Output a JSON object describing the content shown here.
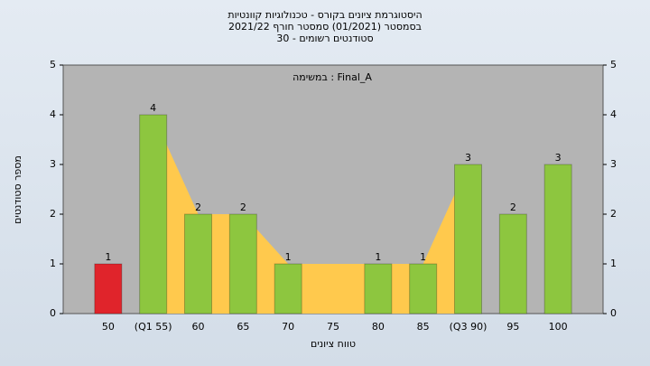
{
  "chart_data": {
    "type": "bar",
    "title": [
      "היסטוגרמת ציונים בקורס - טכנולוגיות קוונטיות",
      "בסמסטר  (01/2021)  סמסטר חורף 2021/22",
      "סטודנטים רשומים - 30"
    ],
    "annotation": "במשימה : Final_A",
    "x_label": "טווח ציונים",
    "y_label": "מספר סטודנטים",
    "categories": [
      "50",
      "(Q1 55)",
      "60",
      "65",
      "70",
      "75",
      "80",
      "85",
      "(Q3 90)",
      "95",
      "100"
    ],
    "values": [
      1,
      4,
      2,
      2,
      1,
      null,
      1,
      1,
      3,
      2,
      3
    ],
    "colors": [
      "#e0242b",
      "#8dc63f",
      "#8dc63f",
      "#8dc63f",
      "#8dc63f",
      null,
      "#8dc63f",
      "#8dc63f",
      "#8dc63f",
      "#8dc63f",
      "#8dc63f"
    ],
    "area_color": "#ffc94d",
    "area_range": [
      1,
      8
    ],
    "ylim": [
      0,
      5
    ],
    "yticks": [
      0,
      1,
      2,
      3,
      4,
      5
    ],
    "grid": false
  }
}
